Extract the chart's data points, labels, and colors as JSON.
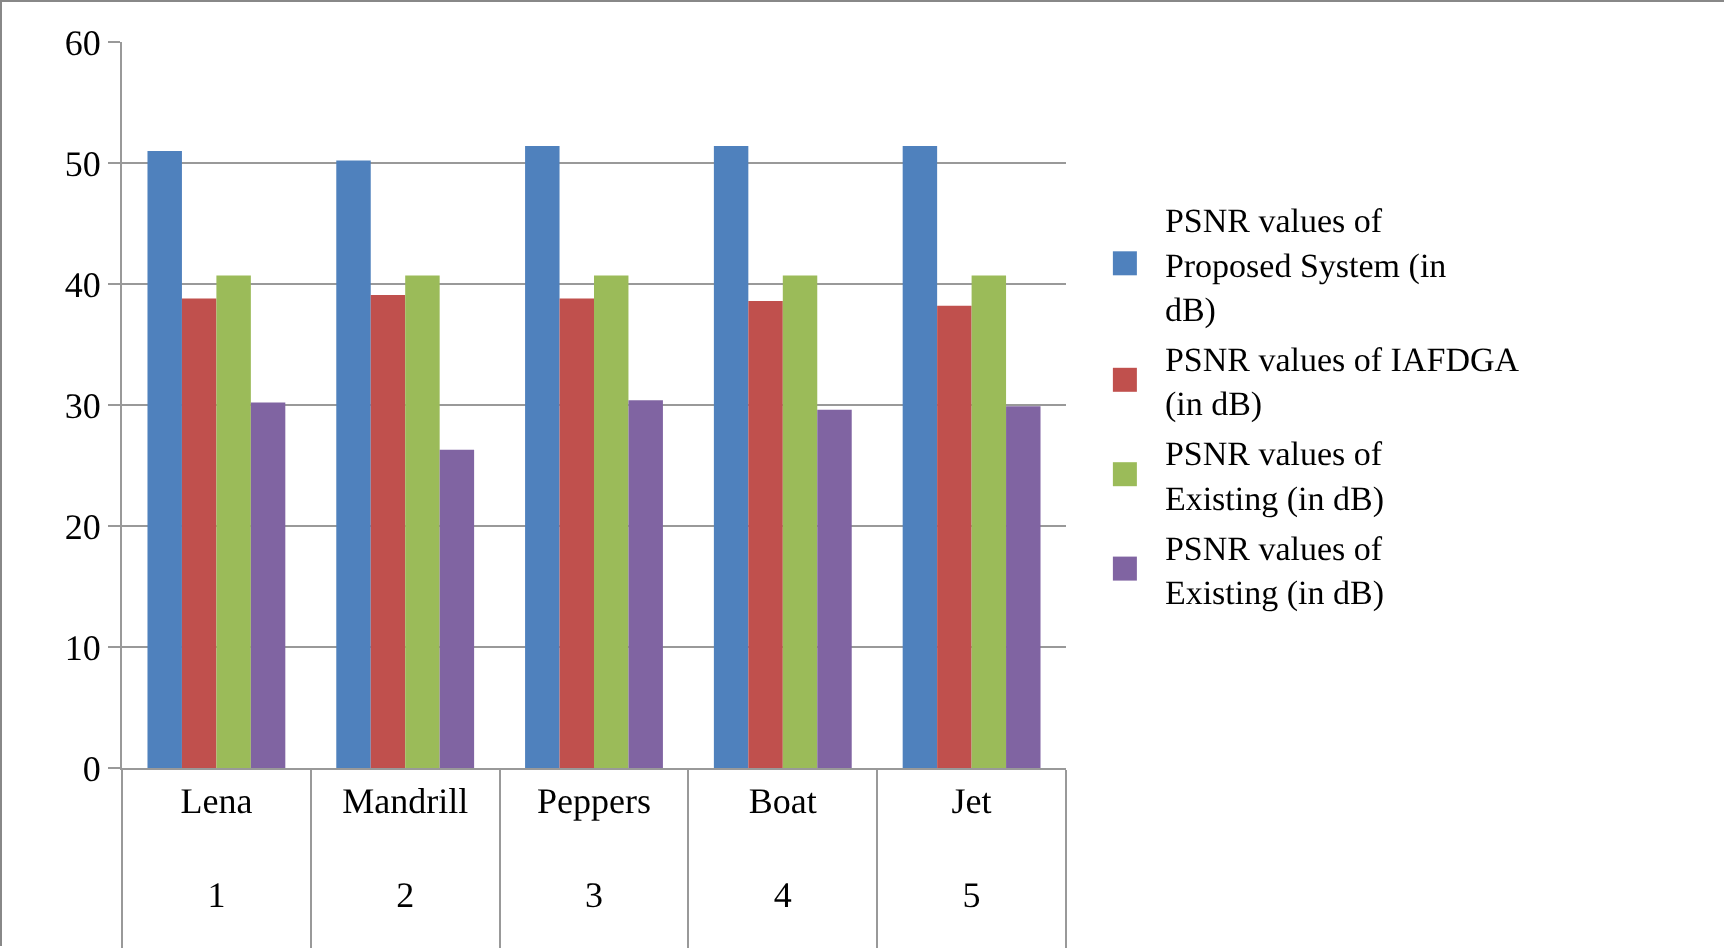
{
  "chart_data": {
    "type": "bar",
    "categories": [
      "Lena\n1",
      "Mandrill\n2",
      "Peppers\n3",
      "Boat\n4",
      "Jet\n5"
    ],
    "series": [
      {
        "name": "PSNR values of Proposed System (in dB)",
        "color": "#4f81bd",
        "values": [
          51.0,
          50.2,
          51.4,
          51.4,
          51.4
        ]
      },
      {
        "name": "PSNR values of IAFDGA (in dB)",
        "color": "#c0504d",
        "values": [
          38.8,
          39.1,
          38.8,
          38.6,
          38.2
        ]
      },
      {
        "name": "PSNR values of Existing (in dB)",
        "color": "#9bbb59",
        "values": [
          40.7,
          40.7,
          40.7,
          40.7,
          40.7
        ]
      },
      {
        "name": "PSNR values of Existing (in dB)",
        "color": "#8064a2",
        "values": [
          30.2,
          26.3,
          30.4,
          29.6,
          29.9
        ]
      }
    ],
    "ylim": [
      0,
      60
    ],
    "yticks": [
      0,
      10,
      20,
      30,
      40,
      50,
      60
    ],
    "grid": "y",
    "legend": "right"
  }
}
